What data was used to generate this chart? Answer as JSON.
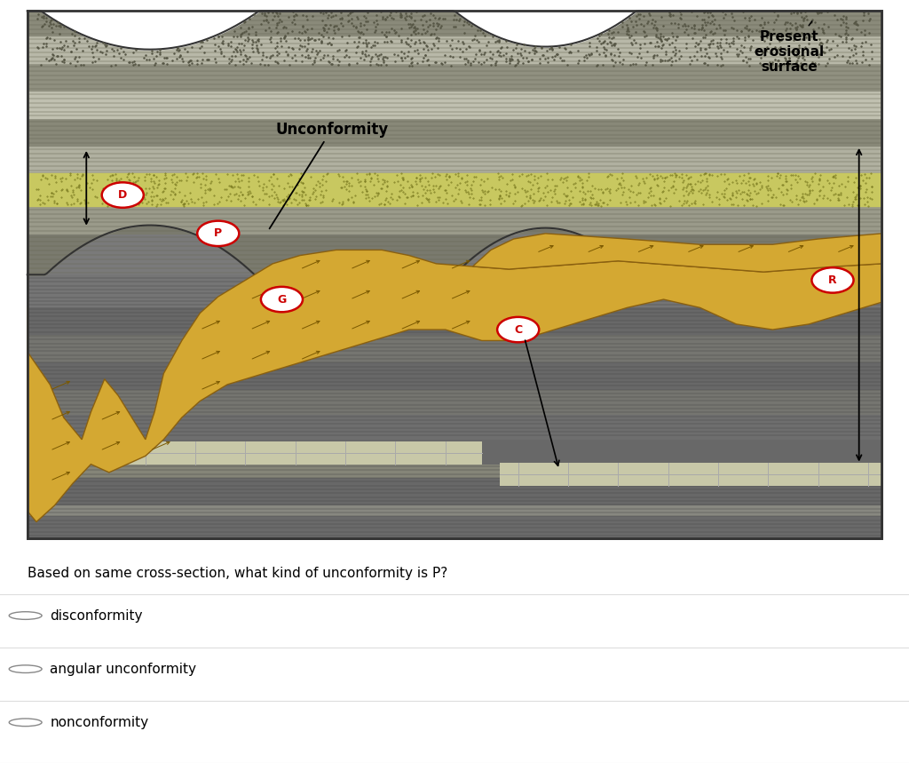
{
  "title": "",
  "background_color": "#ffffff",
  "question_text": "Based on same cross-section, what kind of unconformity is P?",
  "options": [
    "disconformity",
    "angular unconformity",
    "nonconformity"
  ],
  "layer_colors": {
    "dark_gray": "#7a7a7a",
    "med_gray": "#909090",
    "light_gray": "#b0b4a8",
    "yellow_green": "#c8c870",
    "sandy_yellow": "#d4a832",
    "brick": "#c8c8a8",
    "top_rock": "#9a9a8a"
  }
}
